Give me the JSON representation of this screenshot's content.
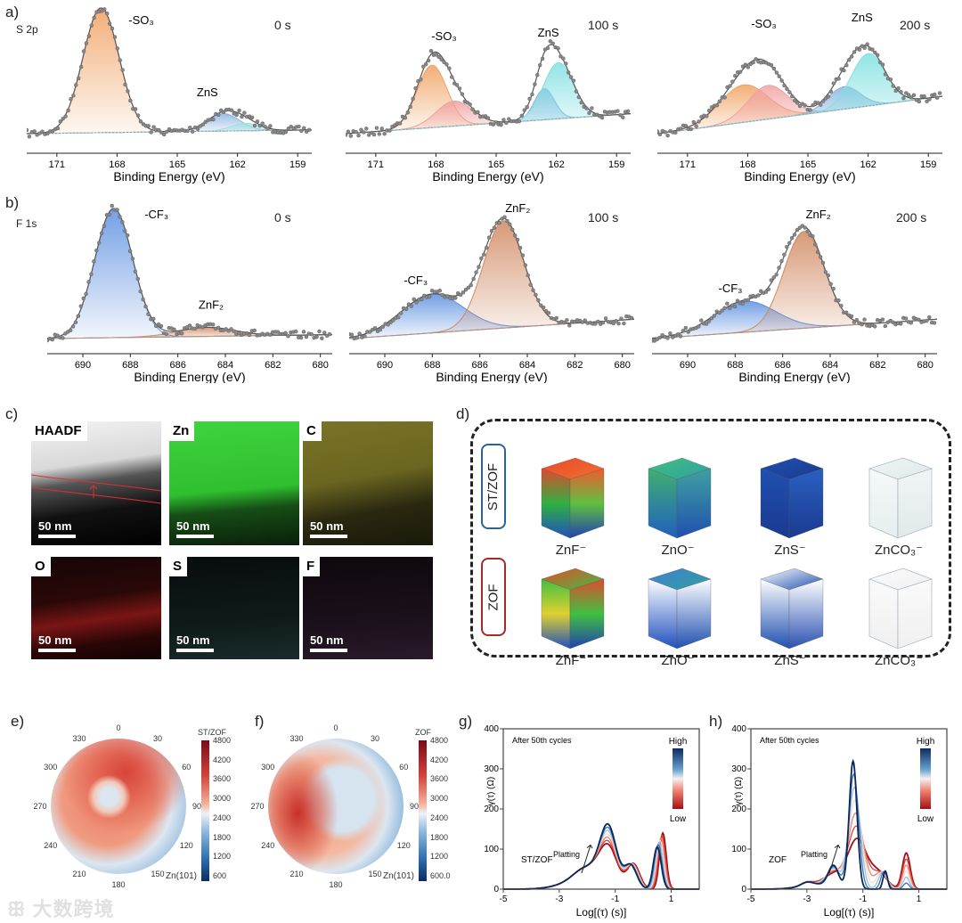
{
  "panel_labels": {
    "a": "a)",
    "b": "b)",
    "c": "c)",
    "d": "d)",
    "e": "e)",
    "f": "f)",
    "g": "g)",
    "h": "h)"
  },
  "chart_data": [
    {
      "type": "line",
      "panel": "a",
      "title": "S 2p",
      "time": "0 s",
      "xlabel": "Binding Energy (eV)",
      "xlim": [
        172.5,
        158.3
      ],
      "xticks": [
        171,
        168,
        165,
        162,
        159
      ],
      "baseline": [
        0.0,
        0.03
      ],
      "components": [
        {
          "name": "-SO₃",
          "center": 168.8,
          "amp": 1.0,
          "sigma": 0.9,
          "color": "#f0a060"
        },
        {
          "name": "ZnS",
          "center": 162.7,
          "amp": 0.14,
          "sigma": 0.8,
          "color": "#8ab4e0"
        },
        {
          "name": "ZnS-2",
          "center": 161.6,
          "amp": 0.06,
          "sigma": 0.7,
          "color": "#9fe0e0"
        }
      ],
      "labels": [
        {
          "text": "-SO₃",
          "x": 166.8,
          "y": 0.88
        },
        {
          "text": "ZnS",
          "x": 163.5,
          "y": 0.3
        }
      ]
    },
    {
      "type": "line",
      "panel": "a",
      "time": "100 s",
      "xlabel": "Binding Energy (eV)",
      "xlim": [
        172.5,
        158.3
      ],
      "xticks": [
        171,
        168,
        165,
        162,
        159
      ],
      "baseline": [
        0.0,
        0.16
      ],
      "components": [
        {
          "name": "-SO₃",
          "center": 168.2,
          "amp": 0.5,
          "sigma": 0.75,
          "color": "#f0a060"
        },
        {
          "name": "-SO₃-2",
          "center": 167.1,
          "amp": 0.2,
          "sigma": 0.9,
          "color": "#f0a0a0"
        },
        {
          "name": "ZnS",
          "center": 162.6,
          "amp": 0.25,
          "sigma": 0.5,
          "color": "#8ab4e0"
        },
        {
          "name": "ZnS-2",
          "center": 161.9,
          "amp": 0.45,
          "sigma": 0.75,
          "color": "#80e0e0"
        }
      ],
      "labels": [
        {
          "text": "-SO₃",
          "x": 167.6,
          "y": 0.75
        },
        {
          "text": "ZnS",
          "x": 162.4,
          "y": 0.78
        }
      ]
    },
    {
      "type": "line",
      "panel": "a",
      "time": "200 s",
      "xlabel": "Binding Energy (eV)",
      "xlim": [
        172.5,
        158.3
      ],
      "xticks": [
        171,
        168,
        165,
        162,
        159
      ],
      "baseline": [
        0.0,
        0.3
      ],
      "components": [
        {
          "name": "-SO₃",
          "center": 168.2,
          "amp": 0.3,
          "sigma": 1.2,
          "color": "#f0a060"
        },
        {
          "name": "-SO₃-2",
          "center": 167.0,
          "amp": 0.27,
          "sigma": 1.0,
          "color": "#f0a0a0"
        },
        {
          "name": "ZnS",
          "center": 163.2,
          "amp": 0.18,
          "sigma": 0.8,
          "color": "#8ab4e0"
        },
        {
          "name": "ZnS-2",
          "center": 162.0,
          "amp": 0.42,
          "sigma": 0.85,
          "color": "#80e0e0"
        }
      ],
      "labels": [
        {
          "text": "-SO₃",
          "x": 167.2,
          "y": 0.85
        },
        {
          "text": "ZnS",
          "x": 162.3,
          "y": 0.9
        }
      ]
    },
    {
      "type": "line",
      "panel": "b",
      "title": "F 1s",
      "time": "0 s",
      "xlabel": "Binding Energy (eV)",
      "xlim": [
        691.5,
        679.5
      ],
      "xticks": [
        690,
        688,
        686,
        684,
        682,
        680
      ],
      "baseline": [
        0.0,
        0.03
      ],
      "components": [
        {
          "name": "-CF₃",
          "center": 688.7,
          "amp": 1.0,
          "sigma": 0.8,
          "color": "#5b8fe0"
        },
        {
          "name": "ZnF₂",
          "center": 684.8,
          "amp": 0.07,
          "sigma": 1.2,
          "color": "#d08860"
        }
      ],
      "labels": [
        {
          "text": "-CF₃",
          "x": 686.9,
          "y": 0.93
        },
        {
          "text": "ZnF₂",
          "x": 684.6,
          "y": 0.23
        }
      ]
    },
    {
      "type": "line",
      "panel": "b",
      "time": "100 s",
      "xlabel": "Binding Energy (eV)",
      "xlim": [
        691.5,
        679.5
      ],
      "xticks": [
        690,
        688,
        686,
        684,
        682,
        680
      ],
      "baseline": [
        0.0,
        0.15
      ],
      "components": [
        {
          "name": "-CF₃",
          "center": 688.0,
          "amp": 0.3,
          "sigma": 1.3,
          "color": "#5b8fe0"
        },
        {
          "name": "ZnF₂",
          "center": 685.0,
          "amp": 0.83,
          "sigma": 0.85,
          "color": "#d08860"
        }
      ],
      "labels": [
        {
          "text": "-CF₃",
          "x": 688.7,
          "y": 0.42
        },
        {
          "text": "ZnF₂",
          "x": 684.4,
          "y": 0.98
        }
      ]
    },
    {
      "type": "line",
      "panel": "b",
      "time": "200 s",
      "xlabel": "Binding Energy (eV)",
      "xlim": [
        691.5,
        679.5
      ],
      "xticks": [
        690,
        688,
        686,
        684,
        682,
        680
      ],
      "baseline": [
        0.0,
        0.15
      ],
      "components": [
        {
          "name": "-CF₃",
          "center": 687.6,
          "amp": 0.24,
          "sigma": 1.3,
          "color": "#5b8fe0"
        },
        {
          "name": "ZnF₂",
          "center": 685.1,
          "amp": 0.75,
          "sigma": 0.85,
          "color": "#d08860"
        }
      ],
      "labels": [
        {
          "text": "-CF₃",
          "x": 688.2,
          "y": 0.36
        },
        {
          "text": "ZnF₂",
          "x": 684.5,
          "y": 0.93
        }
      ]
    },
    {
      "type": "heatmap",
      "panel": "e",
      "title": "ST/ZOF",
      "subtitle": "Zn(101)",
      "angles": [
        "0",
        "30",
        "60",
        "90",
        "120",
        "150",
        "180",
        "210",
        "240",
        "270",
        "300",
        "330"
      ],
      "colorbar_ticks": [
        "4800",
        "4200",
        "3600",
        "3000",
        "2400",
        "1800",
        "1200",
        "600"
      ],
      "range": [
        600,
        4800
      ]
    },
    {
      "type": "heatmap",
      "panel": "f",
      "title": "ZOF",
      "subtitle": "Zn(101)",
      "angles": [
        "0",
        "30",
        "60",
        "90",
        "120",
        "150",
        "180",
        "210",
        "240",
        "270",
        "300",
        "330"
      ],
      "colorbar_ticks": [
        "4800",
        "4200",
        "3600",
        "3000",
        "2400",
        "1800",
        "1200",
        "600.0"
      ],
      "range": [
        600,
        4800
      ]
    },
    {
      "type": "line",
      "panel": "g",
      "annotation": "After  50th cycles",
      "sample": "ST/ZOF",
      "arrow_label": "Platting",
      "legend_high": "High",
      "legend_low": "Low",
      "xlabel": "Log[(τ) (s)]",
      "ylabel": "γ(τ) (Ω)",
      "xlim": [
        -5,
        2
      ],
      "ylim": [
        0,
        400
      ],
      "xticks": [
        -5,
        -3,
        -1,
        1
      ],
      "yticks": [
        0,
        100,
        200,
        300,
        400
      ],
      "low": [
        [
          -2.0,
          45,
          0.45
        ],
        [
          -1.25,
          100,
          0.33
        ],
        [
          -0.35,
          62,
          0.22
        ],
        [
          0.7,
          140,
          0.12
        ]
      ],
      "high": [
        [
          -2.0,
          45,
          0.45
        ],
        [
          -1.25,
          150,
          0.3
        ],
        [
          -0.45,
          58,
          0.22
        ],
        [
          0.5,
          105,
          0.14
        ]
      ],
      "n_curves": 7
    },
    {
      "type": "line",
      "panel": "h",
      "annotation": "After  50th cycles",
      "sample": "ZOF",
      "arrow_label": "Platting",
      "legend_high": "High",
      "legend_low": "Low",
      "xlabel": "Log[(τ) (s)]",
      "ylabel": "γ(τ) (Ω)",
      "xlim": [
        -5,
        2
      ],
      "ylim": [
        0,
        400
      ],
      "xticks": [
        -5,
        -3,
        -1,
        1
      ],
      "yticks": [
        0,
        100,
        200,
        300,
        400
      ],
      "low": [
        [
          -3.0,
          8,
          0.2
        ],
        [
          -2.0,
          30,
          0.35
        ],
        [
          -1.2,
          122,
          0.33
        ],
        [
          -0.45,
          40,
          0.3
        ],
        [
          0.55,
          90,
          0.14
        ]
      ],
      "high": [
        [
          -3.0,
          8,
          0.2
        ],
        [
          -2.05,
          52,
          0.18
        ],
        [
          -1.35,
          318,
          0.14
        ],
        [
          -0.2,
          45,
          0.08
        ],
        [
          0.55,
          0,
          0.1
        ]
      ],
      "n_curves": 7
    }
  ],
  "micrographs": [
    {
      "label": "HAADF",
      "scale": "50 nm"
    },
    {
      "label": "Zn",
      "scale": "50 nm"
    },
    {
      "label": "C",
      "scale": "50 nm"
    },
    {
      "label": "O",
      "scale": "50 nm"
    },
    {
      "label": "S",
      "scale": "50 nm"
    },
    {
      "label": "F",
      "scale": "50 nm"
    }
  ],
  "tof_sims": {
    "rows": [
      {
        "label": "ST/ZOF",
        "color": "#2a6496"
      },
      {
        "label": "ZOF",
        "color": "#a52a2a"
      }
    ],
    "species": [
      "ZnF⁻",
      "ZnO⁻",
      "ZnS⁻",
      "ZnCO₃⁻"
    ]
  },
  "watermark": "大数跨境"
}
